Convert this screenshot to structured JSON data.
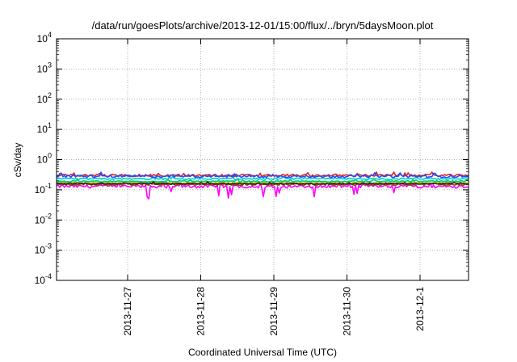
{
  "chart_data": {
    "type": "line",
    "title": "/data/run/goesPlots/archive/2013-12-01/15:00/flux/../bryn/5daysMoon.plot",
    "xlabel": "Coordinated Universal Time (UTC)",
    "ylabel": "cSv/day",
    "yscale": "log",
    "ylim": [
      0.0001,
      10000
    ],
    "xlim_days_label": [
      "2013-11-26 ~00:00",
      "2013-12-01 ~15:00"
    ],
    "x_tick_labels": [
      "2013-11-27",
      "2013-11-28",
      "2013-11-29",
      "2013-11-30",
      "2013-12-1"
    ],
    "y_ticks": [
      {
        "base": "10",
        "exp": "-4"
      },
      {
        "base": "10",
        "exp": "-3"
      },
      {
        "base": "10",
        "exp": "-2"
      },
      {
        "base": "10",
        "exp": "-1"
      },
      {
        "base": "10",
        "exp": "0"
      },
      {
        "base": "10",
        "exp": "1"
      },
      {
        "base": "10",
        "exp": "2"
      },
      {
        "base": "10",
        "exp": "3"
      },
      {
        "base": "10",
        "exp": "4"
      }
    ],
    "grid": true,
    "legend": "none",
    "series": [
      {
        "color": "#ff00ff",
        "level": 0.13,
        "noise": 0.25,
        "dips": true
      },
      {
        "color": "#8b4513",
        "level": 0.15,
        "noise": 0.12,
        "dips": false
      },
      {
        "color": "#cccc00",
        "level": 0.17,
        "noise": 0.1,
        "dips": false
      },
      {
        "color": "#00cc66",
        "level": 0.19,
        "noise": 0.1,
        "dips": false
      },
      {
        "color": "#00cccc",
        "level": 0.23,
        "noise": 0.12,
        "dips": false
      },
      {
        "color": "#dd2222",
        "level": 0.3,
        "noise": 0.18,
        "dips": false
      },
      {
        "color": "#1f4fff",
        "level": 0.28,
        "noise": 0.2,
        "dips": false
      },
      {
        "color": "#222222",
        "level": 0.16,
        "noise": 0.08,
        "dips": false
      }
    ]
  }
}
